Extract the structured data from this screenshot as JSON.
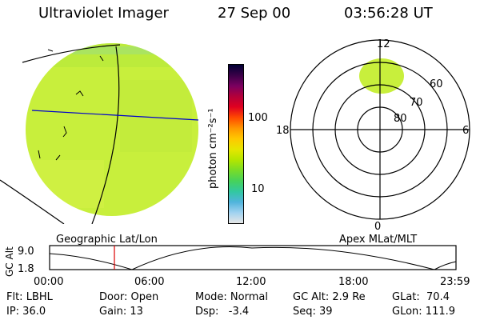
{
  "header": {
    "instrument": "Ultraviolet Imager",
    "date": "27 Sep 00",
    "time": "03:56:28 UT"
  },
  "colorbar": {
    "label": "photon cm⁻²s⁻¹",
    "ticks": [
      "100",
      "10"
    ],
    "colors": [
      "#000033",
      "#3a0048",
      "#7a0060",
      "#b3003a",
      "#e00020",
      "#ff4a00",
      "#ff9600",
      "#ffc800",
      "#e6e600",
      "#b4e600",
      "#78dc28",
      "#46d25a",
      "#32c8a0",
      "#50b4dc",
      "#a0d2f0",
      "#e6e6e6"
    ]
  },
  "globe": {
    "label": "Geographic Lat/Lon",
    "fill": "#c4ee3a"
  },
  "polar": {
    "label": "Apex MLat/MLT",
    "mlt_labels": {
      "top": "12",
      "left": "18",
      "right": "6",
      "bottom": "0"
    },
    "lat_labels": [
      "60",
      "70",
      "80"
    ]
  },
  "orbit": {
    "ylabel": "GC Alt",
    "y_ticks": [
      "9.0",
      "1.8"
    ],
    "x_ticks": [
      "00:00",
      "06:00",
      "12:00",
      "18:00",
      "23:59"
    ]
  },
  "info": {
    "flt": "Flt: LBHL",
    "ip": "IP: 36.0",
    "door": "Door: Open",
    "gain": "Gain: 13",
    "mode": "Mode: Normal",
    "dsp": "Dsp:   -3.4",
    "gcalt": "GC Alt: 2.9 Re",
    "seq": "Seq: 39",
    "glat": "GLat:  70.4",
    "glon": "GLon: 111.9"
  }
}
